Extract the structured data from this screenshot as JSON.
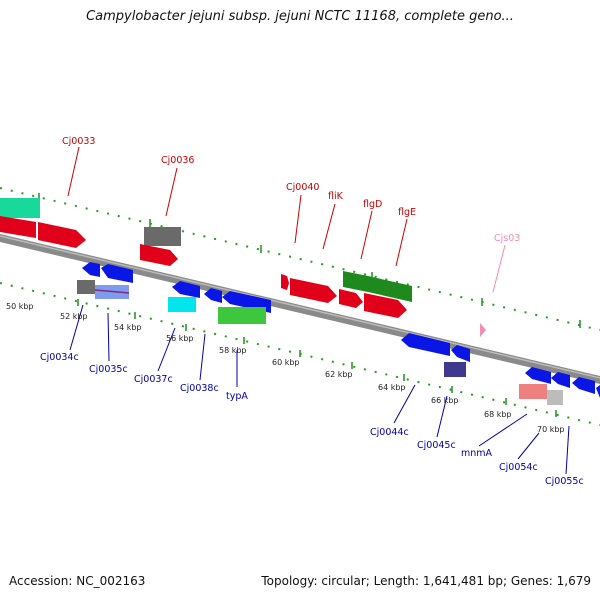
{
  "title": "Campylobacter jejuni subsp. jejuni NCTC 11168, complete geno...",
  "footer": {
    "accession": "Accession: NC_002163",
    "summary": "Topology: circular; Length: 1,641,481 bp; Genes: 1,679"
  },
  "colors": {
    "forward_label": "#cc0000",
    "reverse_label": "#0000aa",
    "ncrna_label": "#f28cb9",
    "tick": "#009900",
    "backbone": "#888888"
  },
  "scale_labels": [
    "50 kbp",
    "52 kbp",
    "54 kbp",
    "56 kbp",
    "58 kbp",
    "60 kbp",
    "62 kbp",
    "64 kbp",
    "66 kbp",
    "68 kbp",
    "70 kbp"
  ],
  "forward_gene_labels": [
    "Cj0033",
    "Cj0036",
    "Cj0040",
    "fliK",
    "flgD",
    "flgE"
  ],
  "ncrna_labels": [
    "Cjs03"
  ],
  "reverse_gene_labels": [
    "Cj0034c",
    "Cj0035c",
    "Cj0037c",
    "Cj0038c",
    "typA",
    "Cj0044c",
    "Cj0045c",
    "mnmA",
    "Cj0054c",
    "Cj0055c"
  ]
}
